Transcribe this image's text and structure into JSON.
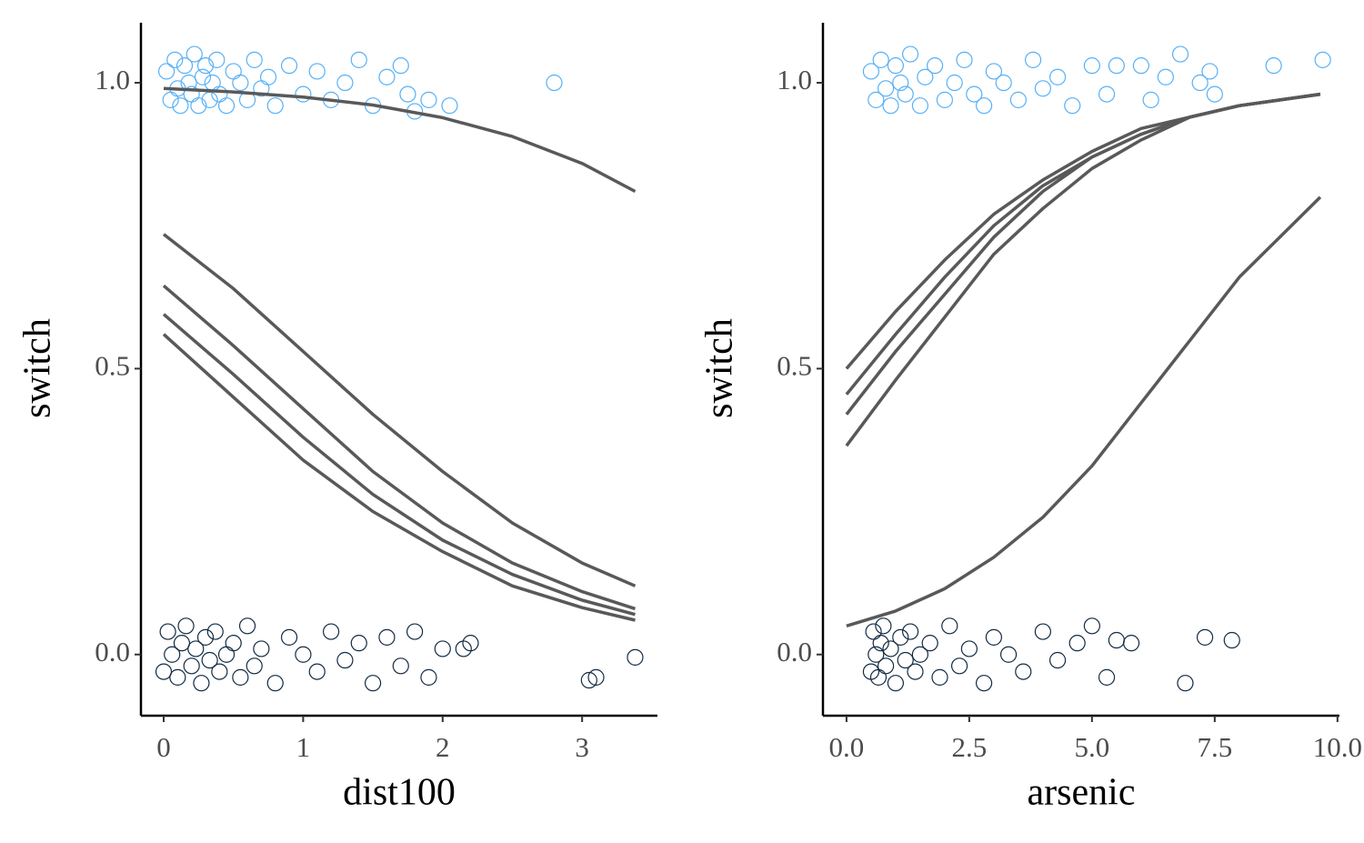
{
  "chart_data": [
    {
      "type": "scatter",
      "xlabel": "dist100",
      "ylabel": "switch",
      "xlim": [
        -0.163,
        3.54
      ],
      "ylim": [
        -0.107,
        1.105
      ],
      "xticks": [
        0,
        1,
        2,
        3
      ],
      "yticks": [
        {
          "value": 0,
          "label": "0.0"
        },
        {
          "value": 0.5,
          "label": "0.5"
        },
        {
          "value": 1,
          "label": "1.0"
        }
      ],
      "series": [
        {
          "color": "#56b1f7",
          "x": [
            0.02,
            0.05,
            0.08,
            0.1,
            0.12,
            0.15,
            0.18,
            0.2,
            0.22,
            0.25,
            0.28,
            0.3,
            0.33,
            0.35,
            0.38,
            0.4,
            0.45,
            0.5,
            0.55,
            0.6,
            0.65,
            0.7,
            0.75,
            0.8,
            0.9,
            1.0,
            1.1,
            1.2,
            1.3,
            1.4,
            1.5,
            1.6,
            1.7,
            1.75,
            1.8,
            1.9,
            2.05,
            2.8
          ],
          "y": [
            1.02,
            0.97,
            1.04,
            0.99,
            0.96,
            1.03,
            1.0,
            0.98,
            1.05,
            0.96,
            1.01,
            1.03,
            0.97,
            1.0,
            1.04,
            0.98,
            0.96,
            1.02,
            1.0,
            0.97,
            1.04,
            0.99,
            1.01,
            0.96,
            1.03,
            0.98,
            1.02,
            0.97,
            1.0,
            1.04,
            0.96,
            1.01,
            1.03,
            0.98,
            0.95,
            0.97,
            0.96,
            1.0
          ]
        },
        {
          "color": "#132b43",
          "x": [
            0.0,
            0.03,
            0.06,
            0.1,
            0.13,
            0.16,
            0.2,
            0.23,
            0.27,
            0.3,
            0.33,
            0.37,
            0.4,
            0.45,
            0.5,
            0.55,
            0.6,
            0.65,
            0.7,
            0.8,
            0.9,
            1.0,
            1.1,
            1.2,
            1.3,
            1.4,
            1.5,
            1.6,
            1.7,
            1.8,
            1.9,
            2.0,
            2.15,
            2.2,
            3.05,
            3.1,
            3.38
          ],
          "y": [
            -0.03,
            0.04,
            0.0,
            -0.04,
            0.02,
            0.05,
            -0.02,
            0.01,
            -0.05,
            0.03,
            -0.01,
            0.04,
            -0.03,
            0.0,
            0.02,
            -0.04,
            0.05,
            -0.02,
            0.01,
            -0.05,
            0.03,
            0.0,
            -0.03,
            0.04,
            -0.01,
            0.02,
            -0.05,
            0.03,
            -0.02,
            0.04,
            -0.04,
            0.01,
            0.01,
            0.02,
            -0.045,
            -0.04,
            -0.005
          ]
        }
      ],
      "curves": [
        {
          "color": "#595959",
          "x": [
            0,
            0.5,
            1,
            1.5,
            2,
            2.5,
            3,
            3.38
          ],
          "y": [
            0.99,
            0.984,
            0.975,
            0.961,
            0.939,
            0.906,
            0.859,
            0.81
          ]
        },
        {
          "color": "#595959",
          "x": [
            0,
            0.5,
            1,
            1.5,
            2,
            2.5,
            3,
            3.38
          ],
          "y": [
            0.735,
            0.64,
            0.53,
            0.42,
            0.32,
            0.23,
            0.16,
            0.12
          ]
        },
        {
          "color": "#595959",
          "x": [
            0,
            0.5,
            1,
            1.5,
            2,
            2.5,
            3,
            3.38
          ],
          "y": [
            0.645,
            0.54,
            0.43,
            0.32,
            0.23,
            0.16,
            0.11,
            0.08
          ]
        },
        {
          "color": "#595959",
          "x": [
            0,
            0.5,
            1,
            1.5,
            2,
            2.5,
            3,
            3.38
          ],
          "y": [
            0.595,
            0.49,
            0.38,
            0.28,
            0.2,
            0.14,
            0.095,
            0.07
          ]
        },
        {
          "color": "#595959",
          "x": [
            0,
            0.5,
            1,
            1.5,
            2,
            2.5,
            3,
            3.38
          ],
          "y": [
            0.56,
            0.45,
            0.34,
            0.25,
            0.18,
            0.12,
            0.082,
            0.06
          ]
        }
      ]
    },
    {
      "type": "scatter",
      "xlabel": "arsenic",
      "ylabel": "switch",
      "xlim": [
        -0.48,
        10.04
      ],
      "ylim": [
        -0.107,
        1.105
      ],
      "xticks": [
        {
          "value": 0,
          "label": "0.0"
        },
        2.5,
        {
          "value": 5,
          "label": "5.0"
        },
        7.5,
        {
          "value": 10,
          "label": "10.0"
        }
      ],
      "yticks": [
        {
          "value": 0,
          "label": "0.0"
        },
        {
          "value": 0.5,
          "label": "0.5"
        },
        {
          "value": 1,
          "label": "1.0"
        }
      ],
      "series": [
        {
          "color": "#56b1f7",
          "x": [
            0.5,
            0.6,
            0.7,
            0.8,
            0.9,
            1.0,
            1.1,
            1.2,
            1.3,
            1.5,
            1.6,
            1.8,
            2.0,
            2.2,
            2.4,
            2.6,
            2.8,
            3.0,
            3.2,
            3.5,
            3.8,
            4.0,
            4.3,
            4.6,
            5.0,
            5.3,
            5.5,
            6.0,
            6.2,
            6.5,
            6.8,
            7.2,
            7.4,
            7.5,
            8.7,
            9.7
          ],
          "y": [
            1.02,
            0.97,
            1.04,
            0.99,
            0.96,
            1.03,
            1.0,
            0.98,
            1.05,
            0.96,
            1.01,
            1.03,
            0.97,
            1.0,
            1.04,
            0.98,
            0.96,
            1.02,
            1.0,
            0.97,
            1.04,
            0.99,
            1.01,
            0.96,
            1.03,
            0.98,
            1.03,
            1.03,
            0.97,
            1.01,
            1.05,
            1.0,
            1.02,
            0.98,
            1.03,
            1.04
          ]
        },
        {
          "color": "#132b43",
          "x": [
            0.5,
            0.55,
            0.6,
            0.65,
            0.7,
            0.75,
            0.8,
            0.9,
            1.0,
            1.1,
            1.2,
            1.3,
            1.4,
            1.5,
            1.7,
            1.9,
            2.1,
            2.3,
            2.5,
            2.8,
            3.0,
            3.3,
            3.6,
            4.0,
            4.3,
            4.7,
            5.0,
            5.3,
            5.5,
            5.8,
            6.9,
            7.3,
            7.85
          ],
          "y": [
            -0.03,
            0.04,
            0.0,
            -0.04,
            0.02,
            0.05,
            -0.02,
            0.01,
            -0.05,
            0.03,
            -0.01,
            0.04,
            -0.03,
            0.0,
            0.02,
            -0.04,
            0.05,
            -0.02,
            0.01,
            -0.05,
            0.03,
            0.0,
            -0.03,
            0.04,
            -0.01,
            0.02,
            0.05,
            -0.04,
            0.025,
            0.02,
            -0.05,
            0.03,
            0.025
          ]
        }
      ],
      "curves": [
        {
          "color": "#595959",
          "x": [
            0,
            1,
            2,
            3,
            4,
            5,
            6,
            7,
            8,
            9.65
          ],
          "y": [
            0.5,
            0.6,
            0.69,
            0.77,
            0.83,
            0.88,
            0.92,
            0.94,
            0.96,
            0.98
          ]
        },
        {
          "color": "#595959",
          "x": [
            0,
            1,
            2,
            3,
            4,
            5,
            6,
            7,
            8,
            9.65
          ],
          "y": [
            0.455,
            0.56,
            0.66,
            0.75,
            0.82,
            0.87,
            0.91,
            0.94,
            0.96,
            0.98
          ]
        },
        {
          "color": "#595959",
          "x": [
            0,
            1,
            2,
            3,
            4,
            5,
            6,
            7,
            8,
            9.65
          ],
          "y": [
            0.42,
            0.53,
            0.63,
            0.73,
            0.81,
            0.87,
            0.91,
            0.94,
            0.96,
            0.98
          ]
        },
        {
          "color": "#595959",
          "x": [
            0,
            1,
            2,
            3,
            4,
            5,
            6,
            7,
            8,
            9.65
          ],
          "y": [
            0.365,
            0.48,
            0.59,
            0.7,
            0.78,
            0.85,
            0.9,
            0.94,
            0.96,
            0.98
          ]
        },
        {
          "color": "#595959",
          "x": [
            0,
            1,
            2,
            3,
            4,
            5,
            6,
            7,
            8,
            9.65
          ],
          "y": [
            0.05,
            0.076,
            0.115,
            0.17,
            0.24,
            0.33,
            0.44,
            0.55,
            0.66,
            0.8
          ]
        }
      ]
    }
  ]
}
